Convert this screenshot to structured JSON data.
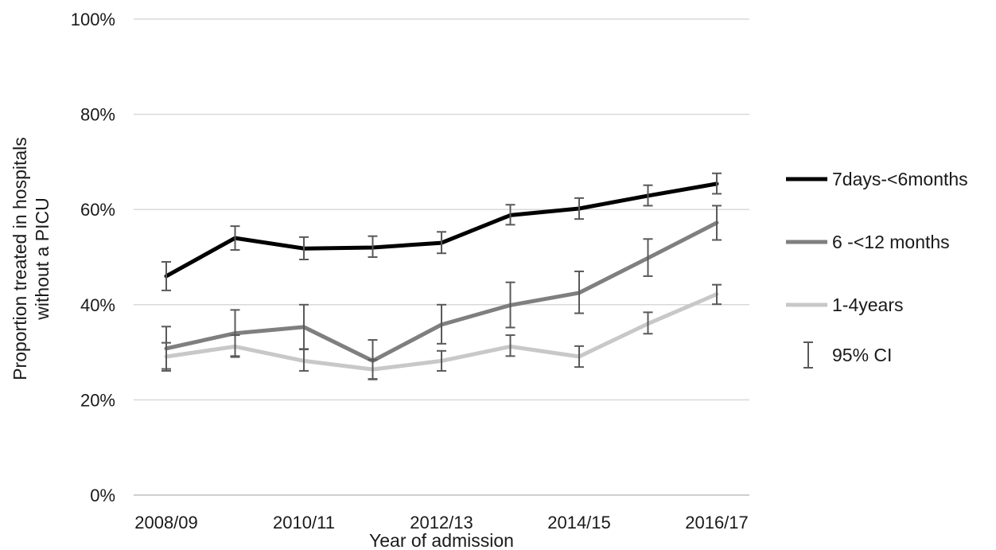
{
  "chart_data": {
    "type": "line",
    "xlabel": "Year of admission",
    "ylabel_lines": [
      "Proportion treated in hospitals",
      "without a PICU"
    ],
    "ylim": [
      0,
      100
    ],
    "yticks": [
      0,
      20,
      40,
      60,
      80,
      100
    ],
    "ytick_labels": [
      "0%",
      "20%",
      "40%",
      "60%",
      "80%",
      "100%"
    ],
    "x": [
      "2008/09",
      "2009/10",
      "2010/11",
      "2011/12",
      "2012/13",
      "2013/14",
      "2014/15",
      "2015/16",
      "2016/17"
    ],
    "xtick_labels": [
      "2008/09",
      "",
      "2010/11",
      "",
      "2012/13",
      "",
      "2014/15",
      "",
      "2016/17"
    ],
    "grid": true,
    "legend_position": "right",
    "series": [
      {
        "name": "7days-<6months",
        "color": "#000000",
        "values": [
          46,
          54,
          51.8,
          52,
          53,
          58.8,
          60.2,
          62.9,
          65.4
        ],
        "ci_low": [
          43,
          51.5,
          49.5,
          50,
          50.8,
          56.8,
          58,
          60.8,
          63.3
        ],
        "ci_high": [
          49,
          56.5,
          54.2,
          54.4,
          55.3,
          61,
          62.4,
          65.1,
          67.6
        ]
      },
      {
        "name": "6 -<12 months",
        "color": "#7f7f7f",
        "values": [
          30.8,
          34,
          35.3,
          28.2,
          35.8,
          39.9,
          42.5,
          49.8,
          57.2
        ],
        "ci_low": [
          26.5,
          29.2,
          30.7,
          24.3,
          31.8,
          35.2,
          38.2,
          46,
          53.6
        ],
        "ci_high": [
          35.4,
          38.9,
          40,
          32.6,
          40,
          44.7,
          47,
          53.8,
          60.8
        ]
      },
      {
        "name": "1-4years",
        "color": "#c8c8c8",
        "values": [
          29.1,
          31.2,
          28.2,
          26.4,
          28.2,
          31.2,
          29.1,
          36,
          42.2
        ],
        "ci_low": [
          26.1,
          29,
          26.1,
          24.4,
          26.1,
          29.2,
          26.9,
          33.9,
          40.1
        ],
        "ci_high": [
          32,
          33.6,
          30.6,
          28.4,
          30.3,
          33.6,
          31.3,
          38.4,
          44.2
        ]
      }
    ],
    "ci_legend_label": "95% CI"
  }
}
